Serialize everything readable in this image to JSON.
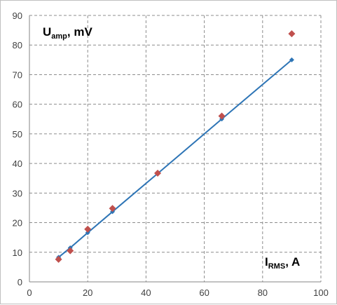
{
  "chart_data": {
    "type": "scatter",
    "title": "",
    "ylabel_main": "U",
    "ylabel_sub": "amp",
    "ylabel_unit": ", mV",
    "xlabel_main": "I",
    "xlabel_sub": "RMS",
    "xlabel_unit": ", A",
    "xlim": [
      0,
      100
    ],
    "ylim": [
      0,
      90
    ],
    "xticks": [
      "0",
      "20",
      "40",
      "60",
      "80",
      "100"
    ],
    "yticks": [
      "0",
      "10",
      "20",
      "30",
      "40",
      "50",
      "60",
      "70",
      "80",
      "90"
    ],
    "grid": true,
    "series": [
      {
        "marker": "diamond",
        "color": "#2e75b6",
        "line": true,
        "points": [
          {
            "x": 10,
            "y": 8.3
          },
          {
            "x": 14,
            "y": 11.5
          },
          {
            "x": 20,
            "y": 16.6
          },
          {
            "x": 28.5,
            "y": 23.7
          },
          {
            "x": 44,
            "y": 36.6
          },
          {
            "x": 66,
            "y": 55.0
          },
          {
            "x": 90,
            "y": 75.0
          }
        ]
      },
      {
        "marker": "diamond",
        "color": "#c0504d",
        "line": false,
        "points": [
          {
            "x": 10,
            "y": 7.6
          },
          {
            "x": 14,
            "y": 10.5
          },
          {
            "x": 20,
            "y": 17.8
          },
          {
            "x": 28.5,
            "y": 24.8
          },
          {
            "x": 44,
            "y": 36.7
          },
          {
            "x": 66,
            "y": 56.0
          },
          {
            "x": 90,
            "y": 83.8
          }
        ]
      }
    ]
  }
}
